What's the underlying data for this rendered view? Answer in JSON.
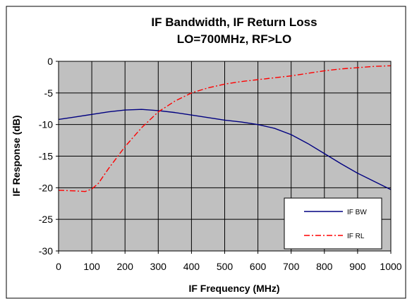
{
  "chart_data": {
    "type": "line",
    "title_line1": "IF Bandwidth, IF Return Loss",
    "title_line2": "LO=700MHz, RF>LO",
    "xlabel": "IF Frequency  (MHz)",
    "ylabel": "IF Response  (dB)",
    "xlim": [
      0,
      1000
    ],
    "ylim": [
      -30,
      0
    ],
    "x_ticks": [
      0,
      100,
      200,
      300,
      400,
      500,
      600,
      700,
      800,
      900,
      1000
    ],
    "y_ticks": [
      0,
      -5,
      -10,
      -15,
      -20,
      -25,
      -30
    ],
    "grid": true,
    "legend_position": "bottom-right",
    "plot_background": "#c0c0c0",
    "series": [
      {
        "name": "IF BW",
        "color": "#000080",
        "style": "solid",
        "x": [
          0,
          50,
          100,
          150,
          200,
          250,
          300,
          350,
          400,
          450,
          500,
          550,
          600,
          650,
          700,
          750,
          800,
          850,
          900,
          950,
          1000
        ],
        "y": [
          -9.2,
          -8.8,
          -8.4,
          -8.0,
          -7.7,
          -7.6,
          -7.8,
          -8.1,
          -8.5,
          -8.9,
          -9.3,
          -9.6,
          -10.0,
          -10.6,
          -11.6,
          -13.0,
          -14.6,
          -16.2,
          -17.7,
          -19.0,
          -20.3
        ]
      },
      {
        "name": "IF RL",
        "color": "#ff0000",
        "style": "dash-dot",
        "x": [
          0,
          50,
          80,
          100,
          120,
          150,
          200,
          250,
          300,
          350,
          400,
          450,
          500,
          550,
          600,
          650,
          700,
          750,
          800,
          850,
          900,
          950,
          1000
        ],
        "y": [
          -20.4,
          -20.5,
          -20.6,
          -20.2,
          -19.3,
          -17.0,
          -13.5,
          -10.5,
          -8.0,
          -6.3,
          -5.0,
          -4.2,
          -3.6,
          -3.2,
          -2.9,
          -2.6,
          -2.3,
          -1.9,
          -1.5,
          -1.2,
          -1.0,
          -0.8,
          -0.7
        ]
      }
    ]
  }
}
